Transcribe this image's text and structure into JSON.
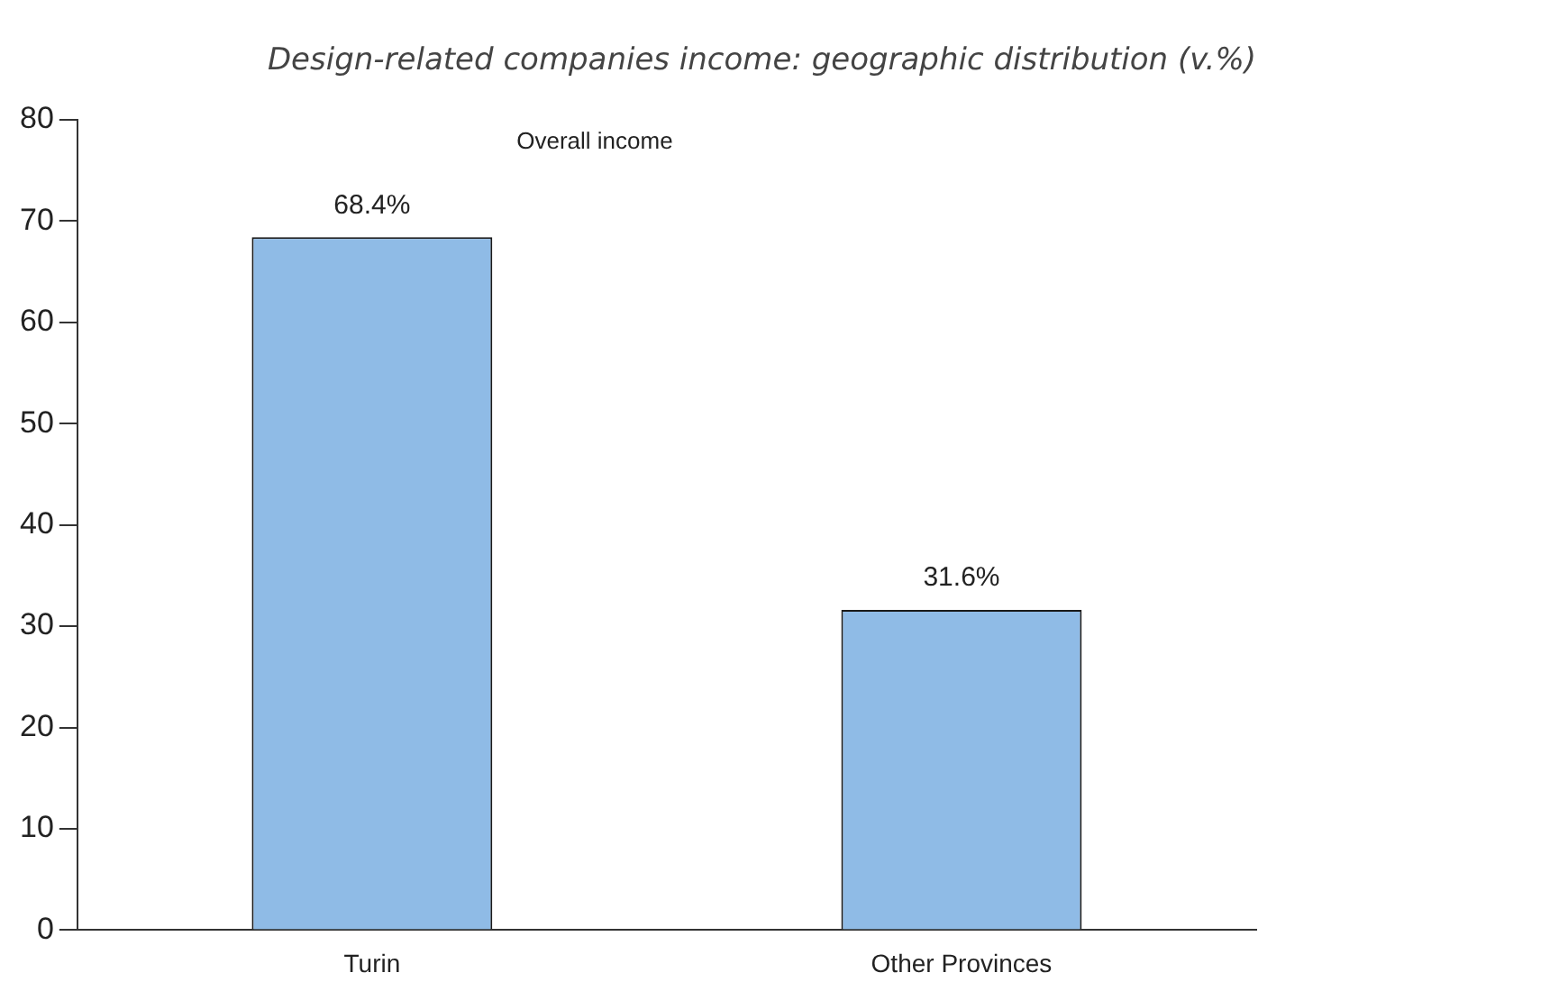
{
  "chart_data": {
    "type": "bar",
    "title": "Design-related companies income: geographic distribution (v.%)",
    "annotations": [
      "Overall income"
    ],
    "categories": [
      "Turin",
      "Other Provinces"
    ],
    "values": [
      68.4,
      31.6
    ],
    "value_labels": [
      "68.4%",
      "31.6%"
    ],
    "color": "#8fbbe6",
    "ylim": [
      0,
      80
    ],
    "yticks": [
      0,
      10,
      20,
      30,
      40,
      50,
      60,
      70,
      80
    ]
  }
}
